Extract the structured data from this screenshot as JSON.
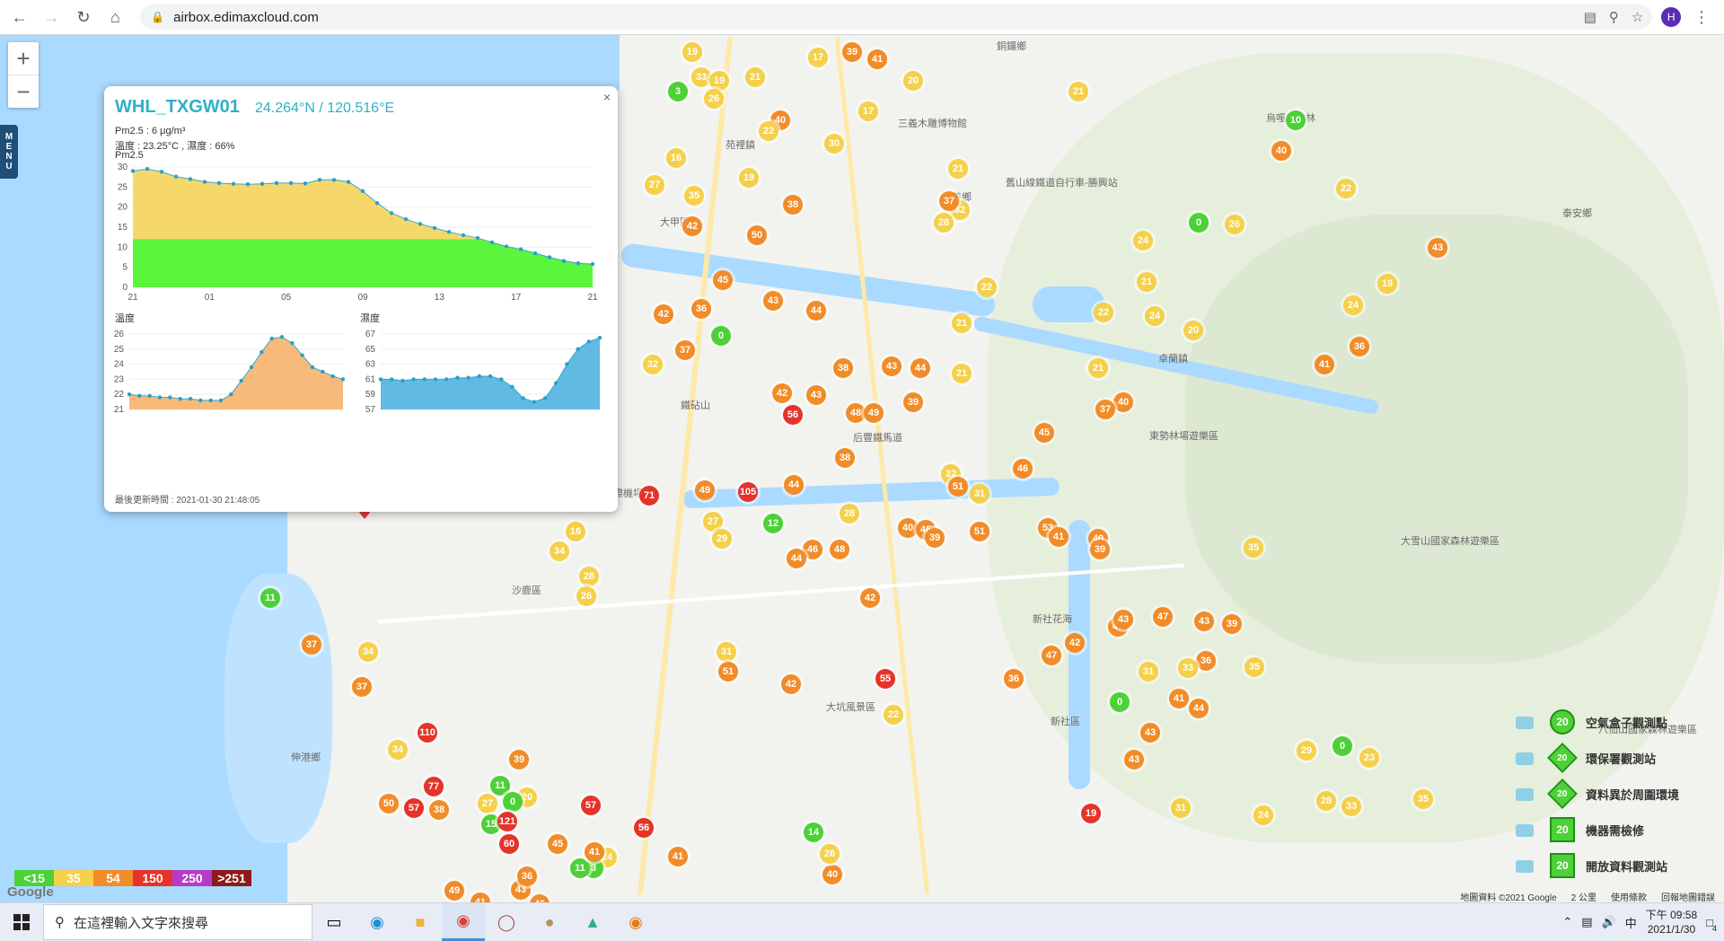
{
  "browser": {
    "url": "airbox.edimaxcloud.com",
    "profile_initial": "H"
  },
  "map": {
    "zoom_in": "+",
    "zoom_out": "−",
    "menu_label": [
      "M",
      "E",
      "N",
      "U"
    ],
    "places": [
      {
        "label": "銅鑼鄉"
      },
      {
        "label": "三義木雕博物館"
      },
      {
        "label": "苑裡鎮"
      },
      {
        "label": "舊山線鐵道自行車-勝興站"
      },
      {
        "label": "義鄉"
      },
      {
        "label": "大甲區"
      },
      {
        "label": "卓蘭鎮"
      },
      {
        "label": "東勢林場遊樂區"
      },
      {
        "label": "大雪山國家森林遊樂區"
      },
      {
        "label": "泰安鄉"
      },
      {
        "label": "烏嘎彥竹林"
      },
      {
        "label": "沙鹿區"
      },
      {
        "label": "新社花海"
      },
      {
        "label": "新社區"
      },
      {
        "label": "伸港鄉"
      },
      {
        "label": "臺中國際機場"
      },
      {
        "label": "八仙山國家森林遊樂區"
      },
      {
        "label": "后豐鐵馬道"
      },
      {
        "label": "鐵砧山"
      },
      {
        "label": "大坑風景區"
      }
    ],
    "markers": [
      {
        "v": "19",
        "c": "#f5d04a"
      },
      {
        "v": "39",
        "c": "#f28c28"
      },
      {
        "v": "41",
        "c": "#f28c28"
      },
      {
        "v": "17",
        "c": "#f5d04a"
      },
      {
        "v": "33",
        "c": "#f5d04a"
      },
      {
        "v": "19",
        "c": "#f5d04a"
      },
      {
        "v": "21",
        "c": "#f5d04a"
      },
      {
        "v": "20",
        "c": "#f5d04a"
      },
      {
        "v": "3",
        "c": "#4cd137"
      },
      {
        "v": "26",
        "c": "#f5d04a"
      },
      {
        "v": "40",
        "c": "#f28c28"
      },
      {
        "v": "17",
        "c": "#f5d04a"
      },
      {
        "v": "22",
        "c": "#f5d04a"
      },
      {
        "v": "30",
        "c": "#f5d04a"
      },
      {
        "v": "19",
        "c": "#f5d04a"
      },
      {
        "v": "21",
        "c": "#f5d04a"
      },
      {
        "v": "32",
        "c": "#f5d04a"
      },
      {
        "v": "21",
        "c": "#f5d04a"
      },
      {
        "v": "10",
        "c": "#4cd137"
      },
      {
        "v": "40",
        "c": "#f28c28"
      },
      {
        "v": "16",
        "c": "#f5d04a"
      },
      {
        "v": "27",
        "c": "#f5d04a"
      },
      {
        "v": "35",
        "c": "#f5d04a"
      },
      {
        "v": "38",
        "c": "#f28c28"
      },
      {
        "v": "37",
        "c": "#f28c28"
      },
      {
        "v": "28",
        "c": "#f5d04a"
      },
      {
        "v": "24",
        "c": "#f5d04a"
      },
      {
        "v": "22",
        "c": "#f5d04a"
      },
      {
        "v": "0",
        "c": "#4cd137"
      },
      {
        "v": "26",
        "c": "#f5d04a"
      },
      {
        "v": "21",
        "c": "#f5d04a"
      },
      {
        "v": "43",
        "c": "#f28c28"
      },
      {
        "v": "42",
        "c": "#f28c28"
      },
      {
        "v": "50",
        "c": "#f28c28"
      },
      {
        "v": "45",
        "c": "#f28c28"
      },
      {
        "v": "43",
        "c": "#f28c28"
      },
      {
        "v": "44",
        "c": "#f28c28"
      },
      {
        "v": "22",
        "c": "#f5d04a"
      },
      {
        "v": "24",
        "c": "#f5d04a"
      },
      {
        "v": "19",
        "c": "#f5d04a"
      },
      {
        "v": "36",
        "c": "#f28c28"
      },
      {
        "v": "0",
        "c": "#4cd137"
      },
      {
        "v": "42",
        "c": "#f28c28"
      },
      {
        "v": "21",
        "c": "#f5d04a"
      },
      {
        "v": "20",
        "c": "#f5d04a"
      },
      {
        "v": "22",
        "c": "#f5d04a"
      },
      {
        "v": "24",
        "c": "#f5d04a"
      },
      {
        "v": "36",
        "c": "#f28c28"
      },
      {
        "v": "37",
        "c": "#f28c28"
      },
      {
        "v": "32",
        "c": "#f5d04a"
      },
      {
        "v": "38",
        "c": "#f28c28"
      },
      {
        "v": "43",
        "c": "#f28c28"
      },
      {
        "v": "44",
        "c": "#f28c28"
      },
      {
        "v": "21",
        "c": "#f5d04a"
      },
      {
        "v": "41",
        "c": "#f28c28"
      },
      {
        "v": "42",
        "c": "#f28c28"
      },
      {
        "v": "43",
        "c": "#f28c28"
      },
      {
        "v": "56",
        "c": "#e63329"
      },
      {
        "v": "48",
        "c": "#f28c28"
      },
      {
        "v": "49",
        "c": "#f28c28"
      },
      {
        "v": "39",
        "c": "#f28c28"
      },
      {
        "v": "21",
        "c": "#f5d04a"
      },
      {
        "v": "40",
        "c": "#f28c28"
      },
      {
        "v": "37",
        "c": "#f28c28"
      },
      {
        "v": "45",
        "c": "#f28c28"
      },
      {
        "v": "38",
        "c": "#f28c28"
      },
      {
        "v": "46",
        "c": "#f28c28"
      },
      {
        "v": "32",
        "c": "#f5d04a"
      },
      {
        "v": "51",
        "c": "#f28c28"
      },
      {
        "v": "31",
        "c": "#f5d04a"
      },
      {
        "v": "71",
        "c": "#e63329"
      },
      {
        "v": "105",
        "c": "#e63329"
      },
      {
        "v": "44",
        "c": "#f28c28"
      },
      {
        "v": "49",
        "c": "#f28c28"
      },
      {
        "v": "27",
        "c": "#f5d04a"
      },
      {
        "v": "29",
        "c": "#f5d04a"
      },
      {
        "v": "12",
        "c": "#4cd137"
      },
      {
        "v": "28",
        "c": "#f5d04a"
      },
      {
        "v": "46",
        "c": "#f28c28"
      },
      {
        "v": "48",
        "c": "#f28c28"
      },
      {
        "v": "40",
        "c": "#f28c28"
      },
      {
        "v": "46",
        "c": "#f28c28"
      },
      {
        "v": "39",
        "c": "#f28c28"
      },
      {
        "v": "51",
        "c": "#f28c28"
      },
      {
        "v": "53",
        "c": "#f28c28"
      },
      {
        "v": "41",
        "c": "#f28c28"
      },
      {
        "v": "40",
        "c": "#f28c28"
      },
      {
        "v": "39",
        "c": "#f28c28"
      },
      {
        "v": "35",
        "c": "#f5d04a"
      },
      {
        "v": "16",
        "c": "#f5d04a"
      },
      {
        "v": "34",
        "c": "#f5d04a"
      },
      {
        "v": "28",
        "c": "#f5d04a"
      },
      {
        "v": "26",
        "c": "#f5d04a"
      },
      {
        "v": "44",
        "c": "#f28c28"
      },
      {
        "v": "42",
        "c": "#f28c28"
      },
      {
        "v": "49",
        "c": "#f28c28"
      },
      {
        "v": "47",
        "c": "#f28c28"
      },
      {
        "v": "43",
        "c": "#f28c28"
      },
      {
        "v": "47",
        "c": "#f28c28"
      },
      {
        "v": "43",
        "c": "#f28c28"
      },
      {
        "v": "39",
        "c": "#f28c28"
      },
      {
        "v": "36",
        "c": "#f28c28"
      },
      {
        "v": "33",
        "c": "#f5d04a"
      },
      {
        "v": "42",
        "c": "#f28c28"
      },
      {
        "v": "35",
        "c": "#f5d04a"
      },
      {
        "v": "31",
        "c": "#f5d04a"
      },
      {
        "v": "51",
        "c": "#f28c28"
      },
      {
        "v": "42",
        "c": "#f28c28"
      },
      {
        "v": "36",
        "c": "#f28c28"
      },
      {
        "v": "55",
        "c": "#e63329"
      },
      {
        "v": "22",
        "c": "#f5d04a"
      },
      {
        "v": "31",
        "c": "#f5d04a"
      },
      {
        "v": "0",
        "c": "#4cd137"
      },
      {
        "v": "41",
        "c": "#f28c28"
      },
      {
        "v": "44",
        "c": "#f28c28"
      },
      {
        "v": "43",
        "c": "#f28c28"
      },
      {
        "v": "43",
        "c": "#f28c28"
      },
      {
        "v": "31",
        "c": "#f5d04a"
      },
      {
        "v": "0",
        "c": "#4cd137"
      },
      {
        "v": "29",
        "c": "#f5d04a"
      },
      {
        "v": "24",
        "c": "#f5d04a"
      },
      {
        "v": "28",
        "c": "#f5d04a"
      },
      {
        "v": "35",
        "c": "#f5d04a"
      },
      {
        "v": "19",
        "c": "#e63329"
      },
      {
        "v": "33",
        "c": "#f5d04a"
      },
      {
        "v": "23",
        "c": "#f5d04a"
      },
      {
        "v": "11",
        "c": "#4cd137"
      },
      {
        "v": "37",
        "c": "#f28c28"
      },
      {
        "v": "34",
        "c": "#f5d04a"
      },
      {
        "v": "37",
        "c": "#f28c28"
      },
      {
        "v": "34",
        "c": "#f5d04a"
      },
      {
        "v": "110",
        "c": "#e63329"
      },
      {
        "v": "57",
        "c": "#e63329"
      },
      {
        "v": "50",
        "c": "#f28c28"
      },
      {
        "v": "38",
        "c": "#f28c28"
      },
      {
        "v": "77",
        "c": "#e63329"
      },
      {
        "v": "27",
        "c": "#f5d04a"
      },
      {
        "v": "15",
        "c": "#4cd137"
      },
      {
        "v": "20",
        "c": "#f5d04a"
      },
      {
        "v": "24",
        "c": "#f5d04a"
      },
      {
        "v": "49",
        "c": "#f28c28"
      },
      {
        "v": "46",
        "c": "#f28c28"
      },
      {
        "v": "41",
        "c": "#f28c28"
      },
      {
        "v": "43",
        "c": "#f28c28"
      },
      {
        "v": "39",
        "c": "#f28c28"
      },
      {
        "v": "11",
        "c": "#4cd137"
      },
      {
        "v": "0",
        "c": "#4cd137"
      },
      {
        "v": "121",
        "c": "#e63329"
      },
      {
        "v": "60",
        "c": "#e63329"
      },
      {
        "v": "57",
        "c": "#e63329"
      },
      {
        "v": "56",
        "c": "#e63329"
      },
      {
        "v": "41",
        "c": "#f28c28"
      },
      {
        "v": "40",
        "c": "#f28c28"
      },
      {
        "v": "26",
        "c": "#f5d04a"
      },
      {
        "v": "14",
        "c": "#4cd137"
      },
      {
        "v": "3",
        "c": "#4cd137"
      },
      {
        "v": "36",
        "c": "#f28c28"
      },
      {
        "v": "11",
        "c": "#4cd137"
      },
      {
        "v": "45",
        "c": "#f28c28"
      },
      {
        "v": "41",
        "c": "#f28c28"
      }
    ],
    "legend": [
      {
        "badge": "20",
        "label": "空氣盒子觀測點",
        "shape": "circle",
        "icon_name": "cloud-icon"
      },
      {
        "badge": "20",
        "label": "環保署觀測站",
        "shape": "diamond",
        "icon_name": "government-building-icon"
      },
      {
        "badge": "20",
        "label": "資料異於周圍環境",
        "shape": "diamond",
        "icon_name": "house-alert-icon"
      },
      {
        "badge": "20",
        "label": "機器需檢修",
        "shape": "triangle",
        "icon_name": "traffic-cone-icon"
      },
      {
        "badge": "20",
        "label": "開放資料觀測站",
        "shape": "square",
        "icon_name": "database-icon"
      }
    ],
    "scale": [
      {
        "label": "<15",
        "color": "#4cd137"
      },
      {
        "label": "35",
        "color": "#f5d04a"
      },
      {
        "label": "54",
        "color": "#f28c28"
      },
      {
        "label": "150",
        "color": "#e63329"
      },
      {
        "label": "250",
        "color": "#b43cc8"
      },
      {
        "label": ">251",
        "color": "#8b1a1a"
      }
    ],
    "google_label": "Google",
    "footer": {
      "map_data": "地圖資料 ©2021 Google",
      "scale": "2 公里",
      "terms": "使用條款",
      "report": "回報地圖錯誤"
    }
  },
  "popup": {
    "station": "WHL_TXGW01",
    "coords": "24.264°N / 120.516°E",
    "pm25_line": "Pm2.5 : 6 μg/m³",
    "env_line": "溫度 : 23.25°C , 濕度 : 66%",
    "chart_title": "Pm2.5",
    "temp_title": "溫度",
    "hum_title": "濕度",
    "updated": "最後更新時間 : 2021-01-30 21:48:05",
    "close": "×"
  },
  "chart_data": [
    {
      "type": "area",
      "title": "Pm2.5",
      "x_ticks": [
        "21",
        "01",
        "05",
        "09",
        "13",
        "17",
        "21"
      ],
      "ylim": [
        0,
        30
      ],
      "y_ticks": [
        0,
        5,
        10,
        15,
        20,
        25,
        30
      ],
      "values": [
        29,
        29.5,
        28.8,
        27.6,
        27,
        26.3,
        26,
        25.8,
        25.7,
        25.8,
        26,
        26,
        25.9,
        26.8,
        26.8,
        26.3,
        24,
        21,
        18.5,
        17,
        15.8,
        14.8,
        13.8,
        13,
        12.3,
        11.2,
        10.2,
        9.5,
        8.5,
        7.5,
        6.6,
        6,
        5.8
      ],
      "band_threshold": 12,
      "band_color": "#5bf53c",
      "area_color": "#f5d45a"
    },
    {
      "type": "area",
      "title": "溫度",
      "ylim": [
        21,
        26
      ],
      "y_ticks": [
        21,
        22,
        23,
        24,
        25,
        26
      ],
      "values": [
        22,
        21.9,
        21.9,
        21.8,
        21.8,
        21.7,
        21.7,
        21.6,
        21.6,
        21.6,
        22,
        22.9,
        23.8,
        24.8,
        25.7,
        25.8,
        25.4,
        24.6,
        23.8,
        23.5,
        23.2,
        23
      ],
      "area_color": "#f6b26b"
    },
    {
      "type": "area",
      "title": "濕度",
      "ylim": [
        57,
        67
      ],
      "y_ticks": [
        57,
        59,
        61,
        63,
        65,
        67
      ],
      "values": [
        61,
        61,
        60.8,
        61,
        61,
        61,
        61,
        61.2,
        61.2,
        61.4,
        61.4,
        61,
        60,
        58.5,
        58,
        58.5,
        60.5,
        63,
        65,
        66,
        66.5
      ],
      "area_color": "#4fb3e0"
    }
  ],
  "taskbar": {
    "search_placeholder": "在這裡輸入文字來搜尋",
    "time": "下午 09:58",
    "date": "2021/1/30",
    "ime": "中",
    "notif_count": "4"
  }
}
